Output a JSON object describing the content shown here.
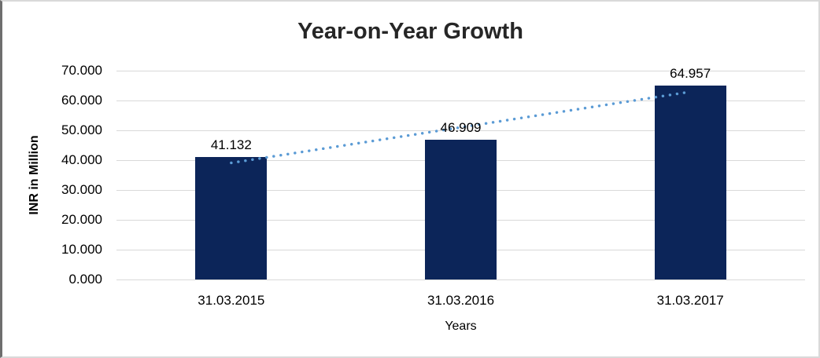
{
  "chart_data": {
    "type": "bar",
    "title": "Year-on-Year Growth",
    "categories": [
      "31.03.2015",
      "31.03.2016",
      "31.03.2017"
    ],
    "values": [
      41.132,
      46.909,
      64.957
    ],
    "data_labels": [
      "41.132",
      "46.909",
      "64.957"
    ],
    "xlabel": "Years",
    "ylabel": "INR in Million",
    "ylim": [
      0,
      70
    ],
    "ytick_step": 10,
    "ytick_labels": [
      "0.000",
      "10.000",
      "20.000",
      "30.000",
      "40.000",
      "50.000",
      "60.000",
      "70.000"
    ],
    "grid": true,
    "legend": "none",
    "bar_color": "#0c2559",
    "gridline_color": "#d9d9d9",
    "trendline": {
      "type": "linear",
      "style": "dotted",
      "color": "#5b9bd5",
      "endpoints_values": [
        39.087,
        62.912
      ]
    }
  }
}
